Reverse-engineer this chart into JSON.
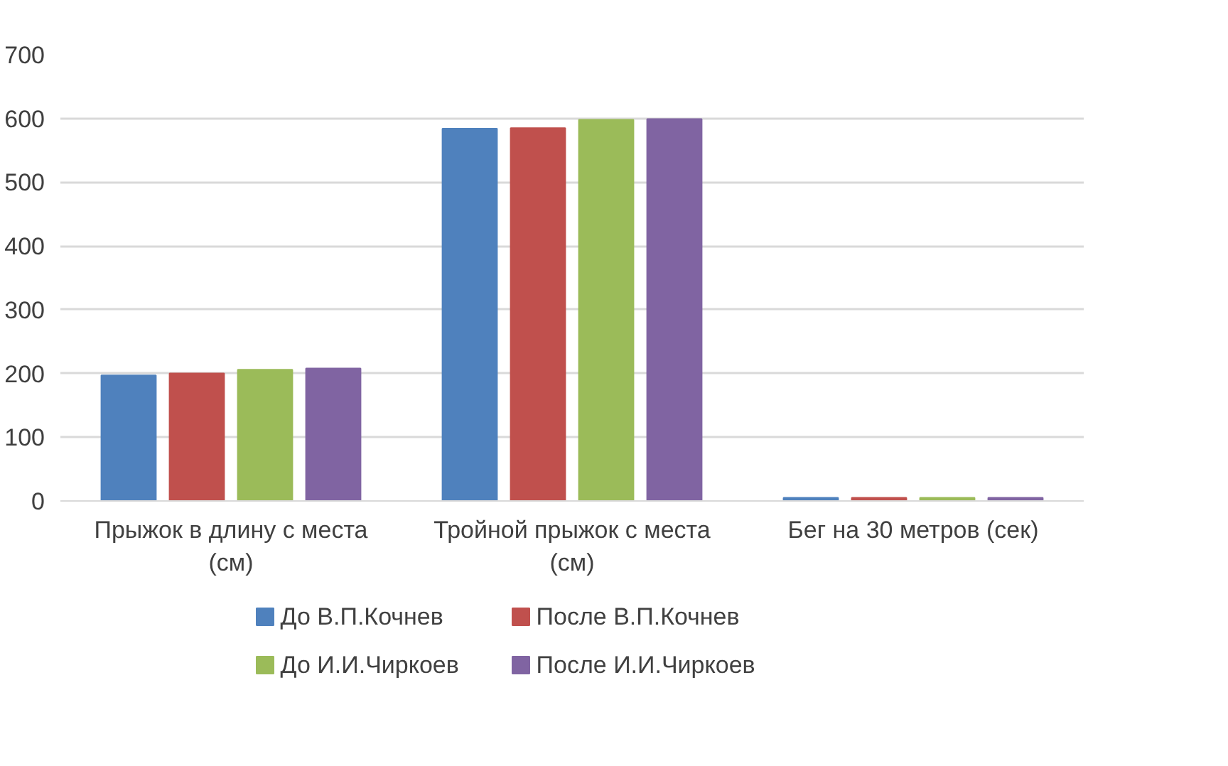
{
  "chart_data": {
    "type": "bar",
    "categories": [
      "Прыжок в длину с места (см)",
      "Тройной прыжок с места (см)",
      "Бег на 30 метров (сек)"
    ],
    "series": [
      {
        "name": "До В.П.Кочнев",
        "color": "#4f81bd",
        "values": [
          197,
          584,
          5
        ]
      },
      {
        "name": "После В.П.Кочнев",
        "color": "#c0504d",
        "values": [
          200,
          585,
          5
        ]
      },
      {
        "name": "До И.И.Чиркоев",
        "color": "#9bbb59",
        "values": [
          206,
          598,
          5
        ]
      },
      {
        "name": "После И.И.Чиркоев",
        "color": "#8064a2",
        "values": [
          208,
          599,
          5
        ]
      }
    ],
    "ylim": [
      0,
      700
    ],
    "yticks": [
      0,
      100,
      200,
      300,
      400,
      500,
      600,
      700
    ],
    "grid": "y",
    "legend": "bottom"
  }
}
